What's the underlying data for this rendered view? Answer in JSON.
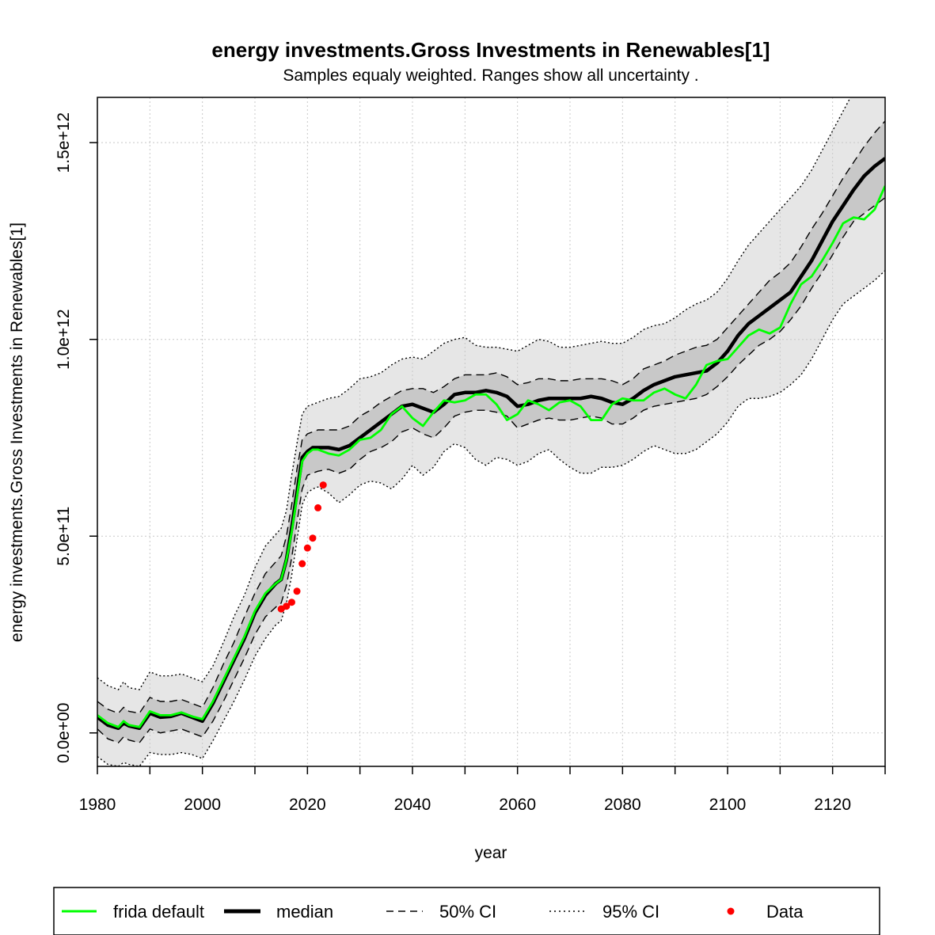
{
  "chart_data": {
    "type": "line",
    "title": "energy investments.Gross Investments in Renewables[1]",
    "subtitle": "Samples equaly weighted. Ranges show  all uncertainty .",
    "xlabel": "year",
    "ylabel": "energy investments.Gross Investments in Renewables[1]",
    "xlim": [
      1980,
      2130
    ],
    "ylim": [
      -85000000000.0,
      1615000000000.0
    ],
    "x_ticks": [
      1980,
      2000,
      2020,
      2040,
      2060,
      2080,
      2100,
      2120
    ],
    "x_tick_labels": [
      "1980",
      "2000",
      "2020",
      "2040",
      "2060",
      "2080",
      "2100",
      "2120"
    ],
    "x_minor_ticks": [
      1990,
      2010,
      2030,
      2050,
      2070,
      2090,
      2110,
      2130
    ],
    "y_ticks": [
      0,
      500000000000.0,
      1000000000000.0,
      1500000000000.0
    ],
    "y_tick_labels": [
      "0.0e+00",
      "5.0e+11",
      "1.0e+12",
      "1.5e+12"
    ],
    "grid": true,
    "legend_position": "bottom",
    "legend": {
      "frida": "frida default",
      "median": "median",
      "ci50": "50% CI",
      "ci95": "95% CI",
      "data": "Data"
    },
    "colors": {
      "frida": "#00ff00",
      "median": "#000000",
      "band95": "#e6e6e6",
      "band50": "#c8c8c8",
      "data": "#ff0000",
      "grid": "#c8c8c8"
    },
    "x": [
      1980,
      1982,
      1984,
      1985,
      1986,
      1988,
      1990,
      1992,
      1994,
      1996,
      1998,
      2000,
      2002,
      2004,
      2006,
      2008,
      2010,
      2012,
      2014,
      2015,
      2016,
      2017,
      2018,
      2019,
      2020,
      2021,
      2022,
      2024,
      2026,
      2028,
      2030,
      2032,
      2034,
      2036,
      2038,
      2040,
      2042,
      2044,
      2046,
      2048,
      2050,
      2052,
      2054,
      2056,
      2058,
      2060,
      2062,
      2064,
      2066,
      2068,
      2070,
      2072,
      2074,
      2076,
      2078,
      2080,
      2082,
      2084,
      2086,
      2088,
      2090,
      2092,
      2094,
      2096,
      2098,
      2100,
      2102,
      2104,
      2106,
      2108,
      2110,
      2112,
      2114,
      2116,
      2118,
      2120,
      2122,
      2124,
      2126,
      2128,
      2130
    ],
    "series": [
      {
        "key": "frida",
        "name": "frida default",
        "values": [
          45000000000.0,
          25000000000.0,
          15000000000.0,
          30000000000.0,
          20000000000.0,
          15000000000.0,
          55000000000.0,
          45000000000.0,
          45000000000.0,
          52000000000.0,
          42000000000.0,
          35000000000.0,
          80000000000.0,
          135000000000.0,
          190000000000.0,
          245000000000.0,
          310000000000.0,
          355000000000.0,
          380000000000.0,
          390000000000.0,
          440000000000.0,
          510000000000.0,
          600000000000.0,
          690000000000.0,
          710000000000.0,
          720000000000.0,
          720000000000.0,
          710000000000.0,
          705000000000.0,
          720000000000.0,
          745000000000.0,
          750000000000.0,
          770000000000.0,
          810000000000.0,
          830000000000.0,
          800000000000.0,
          780000000000.0,
          815000000000.0,
          845000000000.0,
          840000000000.0,
          845000000000.0,
          860000000000.0,
          860000000000.0,
          835000000000.0,
          795000000000.0,
          810000000000.0,
          845000000000.0,
          835000000000.0,
          820000000000.0,
          840000000000.0,
          845000000000.0,
          830000000000.0,
          795000000000.0,
          795000000000.0,
          835000000000.0,
          850000000000.0,
          845000000000.0,
          845000000000.0,
          865000000000.0,
          875000000000.0,
          860000000000.0,
          850000000000.0,
          885000000000.0,
          935000000000.0,
          945000000000.0,
          950000000000.0,
          980000000000.0,
          1010000000000.0,
          1025000000000.0,
          1015000000000.0,
          1030000000000.0,
          1090000000000.0,
          1140000000000.0,
          1160000000000.0,
          1200000000000.0,
          1245000000000.0,
          1295000000000.0,
          1310000000000.0,
          1305000000000.0,
          1330000000000.0,
          1390000000000.0
        ]
      },
      {
        "key": "median",
        "name": "median",
        "values": [
          40000000000.0,
          20000000000.0,
          12000000000.0,
          25000000000.0,
          18000000000.0,
          12000000000.0,
          50000000000.0,
          40000000000.0,
          42000000000.0,
          50000000000.0,
          40000000000.0,
          30000000000.0,
          75000000000.0,
          130000000000.0,
          185000000000.0,
          240000000000.0,
          305000000000.0,
          350000000000.0,
          380000000000.0,
          390000000000.0,
          440000000000.0,
          520000000000.0,
          610000000000.0,
          700000000000.0,
          715000000000.0,
          725000000000.0,
          725000000000.0,
          725000000000.0,
          720000000000.0,
          730000000000.0,
          750000000000.0,
          770000000000.0,
          790000000000.0,
          810000000000.0,
          830000000000.0,
          835000000000.0,
          825000000000.0,
          815000000000.0,
          835000000000.0,
          860000000000.0,
          865000000000.0,
          865000000000.0,
          870000000000.0,
          865000000000.0,
          855000000000.0,
          830000000000.0,
          835000000000.0,
          845000000000.0,
          850000000000.0,
          850000000000.0,
          850000000000.0,
          850000000000.0,
          855000000000.0,
          850000000000.0,
          840000000000.0,
          835000000000.0,
          850000000000.0,
          870000000000.0,
          885000000000.0,
          895000000000.0,
          905000000000.0,
          910000000000.0,
          915000000000.0,
          920000000000.0,
          940000000000.0,
          970000000000.0,
          1010000000000.0,
          1040000000000.0,
          1060000000000.0,
          1080000000000.0,
          1100000000000.0,
          1120000000000.0,
          1160000000000.0,
          1200000000000.0,
          1250000000000.0,
          1300000000000.0,
          1340000000000.0,
          1380000000000.0,
          1415000000000.0,
          1440000000000.0,
          1460000000000.0
        ]
      }
    ],
    "bands": {
      "ci50_lower": [
        10000000000.0,
        -15000000000.0,
        -25000000000.0,
        -10000000000.0,
        -18000000000.0,
        -25000000000.0,
        10000000000.0,
        0.0,
        5000000000.0,
        10000000000.0,
        0.0,
        -10000000000.0,
        30000000000.0,
        80000000000.0,
        135000000000.0,
        190000000000.0,
        250000000000.0,
        295000000000.0,
        320000000000.0,
        330000000000.0,
        375000000000.0,
        445000000000.0,
        535000000000.0,
        620000000000.0,
        655000000000.0,
        660000000000.0,
        665000000000.0,
        670000000000.0,
        660000000000.0,
        670000000000.0,
        695000000000.0,
        715000000000.0,
        725000000000.0,
        740000000000.0,
        765000000000.0,
        775000000000.0,
        760000000000.0,
        750000000000.0,
        775000000000.0,
        805000000000.0,
        815000000000.0,
        820000000000.0,
        820000000000.0,
        815000000000.0,
        805000000000.0,
        775000000000.0,
        785000000000.0,
        795000000000.0,
        800000000000.0,
        795000000000.0,
        795000000000.0,
        800000000000.0,
        805000000000.0,
        800000000000.0,
        785000000000.0,
        785000000000.0,
        800000000000.0,
        820000000000.0,
        830000000000.0,
        835000000000.0,
        840000000000.0,
        845000000000.0,
        850000000000.0,
        860000000000.0,
        880000000000.0,
        905000000000.0,
        935000000000.0,
        960000000000.0,
        985000000000.0,
        1000000000000.0,
        1020000000000.0,
        1050000000000.0,
        1085000000000.0,
        1130000000000.0,
        1170000000000.0,
        1215000000000.0,
        1260000000000.0,
        1300000000000.0,
        1320000000000.0,
        1340000000000.0,
        1360000000000.0
      ],
      "ci50_upper": [
        80000000000.0,
        60000000000.0,
        50000000000.0,
        65000000000.0,
        55000000000.0,
        50000000000.0,
        90000000000.0,
        80000000000.0,
        80000000000.0,
        85000000000.0,
        75000000000.0,
        65000000000.0,
        115000000000.0,
        175000000000.0,
        230000000000.0,
        295000000000.0,
        355000000000.0,
        405000000000.0,
        435000000000.0,
        450000000000.0,
        500000000000.0,
        580000000000.0,
        670000000000.0,
        745000000000.0,
        760000000000.0,
        765000000000.0,
        770000000000.0,
        770000000000.0,
        770000000000.0,
        780000000000.0,
        805000000000.0,
        820000000000.0,
        840000000000.0,
        855000000000.0,
        870000000000.0,
        875000000000.0,
        875000000000.0,
        865000000000.0,
        880000000000.0,
        900000000000.0,
        910000000000.0,
        910000000000.0,
        910000000000.0,
        915000000000.0,
        905000000000.0,
        885000000000.0,
        890000000000.0,
        900000000000.0,
        900000000000.0,
        895000000000.0,
        895000000000.0,
        900000000000.0,
        900000000000.0,
        900000000000.0,
        895000000000.0,
        885000000000.0,
        900000000000.0,
        925000000000.0,
        935000000000.0,
        945000000000.0,
        960000000000.0,
        970000000000.0,
        980000000000.0,
        985000000000.0,
        1000000000000.0,
        1030000000000.0,
        1060000000000.0,
        1090000000000.0,
        1120000000000.0,
        1150000000000.0,
        1170000000000.0,
        1195000000000.0,
        1235000000000.0,
        1280000000000.0,
        1320000000000.0,
        1365000000000.0,
        1410000000000.0,
        1450000000000.0,
        1490000000000.0,
        1525000000000.0,
        1555000000000.0
      ],
      "ci95_lower": [
        -60000000000.0,
        -80000000000.0,
        -85000000000.0,
        -75000000000.0,
        -80000000000.0,
        -85000000000.0,
        -50000000000.0,
        -55000000000.0,
        -55000000000.0,
        -50000000000.0,
        -55000000000.0,
        -65000000000.0,
        -20000000000.0,
        30000000000.0,
        80000000000.0,
        135000000000.0,
        195000000000.0,
        240000000000.0,
        275000000000.0,
        285000000000.0,
        330000000000.0,
        400000000000.0,
        490000000000.0,
        580000000000.0,
        610000000000.0,
        620000000000.0,
        625000000000.0,
        610000000000.0,
        585000000000.0,
        605000000000.0,
        630000000000.0,
        640000000000.0,
        635000000000.0,
        620000000000.0,
        645000000000.0,
        680000000000.0,
        655000000000.0,
        675000000000.0,
        715000000000.0,
        735000000000.0,
        725000000000.0,
        695000000000.0,
        680000000000.0,
        700000000000.0,
        695000000000.0,
        680000000000.0,
        690000000000.0,
        710000000000.0,
        720000000000.0,
        695000000000.0,
        675000000000.0,
        660000000000.0,
        660000000000.0,
        675000000000.0,
        675000000000.0,
        680000000000.0,
        695000000000.0,
        715000000000.0,
        730000000000.0,
        720000000000.0,
        710000000000.0,
        710000000000.0,
        720000000000.0,
        740000000000.0,
        760000000000.0,
        790000000000.0,
        830000000000.0,
        850000000000.0,
        850000000000.0,
        855000000000.0,
        865000000000.0,
        885000000000.0,
        910000000000.0,
        950000000000.0,
        1000000000000.0,
        1050000000000.0,
        1090000000000.0,
        1110000000000.0,
        1130000000000.0,
        1150000000000.0,
        1175000000000.0
      ],
      "ci95_upper": [
        140000000000.0,
        120000000000.0,
        110000000000.0,
        130000000000.0,
        115000000000.0,
        110000000000.0,
        155000000000.0,
        145000000000.0,
        145000000000.0,
        150000000000.0,
        140000000000.0,
        130000000000.0,
        170000000000.0,
        230000000000.0,
        295000000000.0,
        350000000000.0,
        420000000000.0,
        475000000000.0,
        505000000000.0,
        520000000000.0,
        565000000000.0,
        655000000000.0,
        735000000000.0,
        810000000000.0,
        830000000000.0,
        835000000000.0,
        840000000000.0,
        850000000000.0,
        855000000000.0,
        875000000000.0,
        900000000000.0,
        905000000000.0,
        915000000000.0,
        935000000000.0,
        950000000000.0,
        955000000000.0,
        950000000000.0,
        970000000000.0,
        990000000000.0,
        1000000000000.0,
        1005000000000.0,
        985000000000.0,
        980000000000.0,
        980000000000.0,
        975000000000.0,
        970000000000.0,
        985000000000.0,
        1000000000000.0,
        995000000000.0,
        980000000000.0,
        980000000000.0,
        985000000000.0,
        990000000000.0,
        995000000000.0,
        990000000000.0,
        990000000000.0,
        1005000000000.0,
        1025000000000.0,
        1035000000000.0,
        1040000000000.0,
        1055000000000.0,
        1075000000000.0,
        1090000000000.0,
        1100000000000.0,
        1120000000000.0,
        1155000000000.0,
        1200000000000.0,
        1240000000000.0,
        1270000000000.0,
        1300000000000.0,
        1330000000000.0,
        1360000000000.0,
        1390000000000.0,
        1430000000000.0,
        1480000000000.0,
        1530000000000.0,
        1580000000000.0,
        1630000000000.0,
        1660000000000.0,
        1700000000000.0,
        1740000000000.0
      ]
    },
    "data_points": {
      "name": "Data",
      "x": [
        2015,
        2016,
        2017,
        2018,
        2019,
        2020,
        2021,
        2022,
        2023
      ],
      "y": [
        315000000000.0,
        322000000000.0,
        332000000000.0,
        360000000000.0,
        430000000000.0,
        470000000000.0,
        495000000000.0,
        572000000000.0,
        630000000000.0
      ]
    }
  }
}
